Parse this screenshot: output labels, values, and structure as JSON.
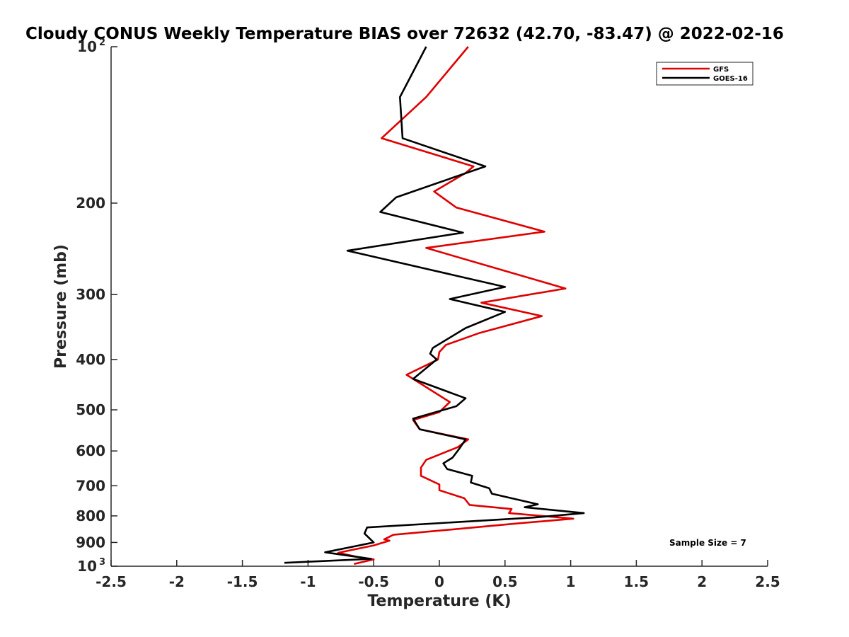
{
  "chart_data": {
    "type": "line",
    "title": "Cloudy CONUS Weekly Temperature BIAS over 72632 (42.70, -83.47) @ 2022-02-16",
    "xlabel": "Temperature (K)",
    "ylabel": "Pressure (mb)",
    "xlim": [
      -2.5,
      2.5
    ],
    "ylim": [
      100,
      1000
    ],
    "y_scale": "log",
    "y_reversed": true,
    "grid": false,
    "legend_position": "top-right",
    "x_ticks": [
      "-2.5",
      "-2",
      "-1.5",
      "-1",
      "-0.5",
      "0",
      "0.5",
      "1",
      "1.5",
      "2",
      "2.5"
    ],
    "y_ticks": [
      {
        "value": 100,
        "label": "10",
        "exp": "2"
      },
      {
        "value": 200,
        "label": "200",
        "exp": ""
      },
      {
        "value": 300,
        "label": "300",
        "exp": ""
      },
      {
        "value": 400,
        "label": "400",
        "exp": ""
      },
      {
        "value": 500,
        "label": "500",
        "exp": ""
      },
      {
        "value": 600,
        "label": "600",
        "exp": ""
      },
      {
        "value": 700,
        "label": "700",
        "exp": ""
      },
      {
        "value": 800,
        "label": "800",
        "exp": ""
      },
      {
        "value": 900,
        "label": "900",
        "exp": ""
      },
      {
        "value": 1000,
        "label": "10",
        "exp": "3"
      }
    ],
    "annotation": "Sample Size = 7",
    "series": [
      {
        "name": "GFS",
        "color": "#e00000",
        "points": [
          [
            0.22,
            100
          ],
          [
            -0.1,
            125
          ],
          [
            -0.44,
            150
          ],
          [
            0.26,
            170
          ],
          [
            0.2,
            175
          ],
          [
            -0.04,
            190
          ],
          [
            0.13,
            204
          ],
          [
            0.8,
            227
          ],
          [
            -0.1,
            244
          ],
          [
            0.96,
            292
          ],
          [
            0.32,
            311
          ],
          [
            0.78,
            330
          ],
          [
            0.3,
            356
          ],
          [
            0.05,
            375
          ],
          [
            0.0,
            387
          ],
          [
            -0.01,
            400
          ],
          [
            -0.25,
            428
          ],
          [
            0.08,
            483
          ],
          [
            0.0,
            505
          ],
          [
            -0.2,
            523
          ],
          [
            -0.15,
            545
          ],
          [
            0.22,
            570
          ],
          [
            0.14,
            590
          ],
          [
            -0.1,
            624
          ],
          [
            -0.14,
            646
          ],
          [
            -0.14,
            670
          ],
          [
            0.0,
            696
          ],
          [
            0.0,
            714
          ],
          [
            0.19,
            740
          ],
          [
            0.23,
            762
          ],
          [
            0.55,
            776
          ],
          [
            0.53,
            790
          ],
          [
            1.02,
            810
          ],
          [
            0.6,
            827
          ],
          [
            0.2,
            845
          ],
          [
            -0.35,
            870
          ],
          [
            -0.42,
            888
          ],
          [
            -0.38,
            893
          ],
          [
            -0.5,
            912
          ],
          [
            -0.77,
            942
          ],
          [
            -0.57,
            966
          ],
          [
            -0.5,
            970
          ],
          [
            -0.65,
            990
          ]
        ]
      },
      {
        "name": "GOES-16",
        "color": "#000000",
        "points": [
          [
            -0.1,
            100
          ],
          [
            -0.3,
            125
          ],
          [
            -0.28,
            150
          ],
          [
            0.35,
            170
          ],
          [
            -0.33,
            195
          ],
          [
            -0.45,
            208
          ],
          [
            0.18,
            228
          ],
          [
            -0.7,
            247
          ],
          [
            0.5,
            290
          ],
          [
            0.08,
            306
          ],
          [
            0.5,
            324
          ],
          [
            0.2,
            348
          ],
          [
            -0.05,
            380
          ],
          [
            -0.07,
            390
          ],
          [
            -0.02,
            400
          ],
          [
            -0.2,
            436
          ],
          [
            0.2,
            475
          ],
          [
            0.13,
            492
          ],
          [
            -0.2,
            520
          ],
          [
            -0.15,
            545
          ],
          [
            0.2,
            570
          ],
          [
            0.15,
            595
          ],
          [
            0.1,
            618
          ],
          [
            0.03,
            634
          ],
          [
            0.06,
            650
          ],
          [
            0.25,
            670
          ],
          [
            0.24,
            690
          ],
          [
            0.38,
            708
          ],
          [
            0.4,
            725
          ],
          [
            0.75,
            760
          ],
          [
            0.65,
            770
          ],
          [
            1.1,
            790
          ],
          [
            0.72,
            806
          ],
          [
            -0.55,
            842
          ],
          [
            -0.57,
            865
          ],
          [
            -0.5,
            900
          ],
          [
            -0.87,
            940
          ],
          [
            -0.52,
            968
          ],
          [
            -1.18,
            985
          ]
        ]
      }
    ]
  }
}
